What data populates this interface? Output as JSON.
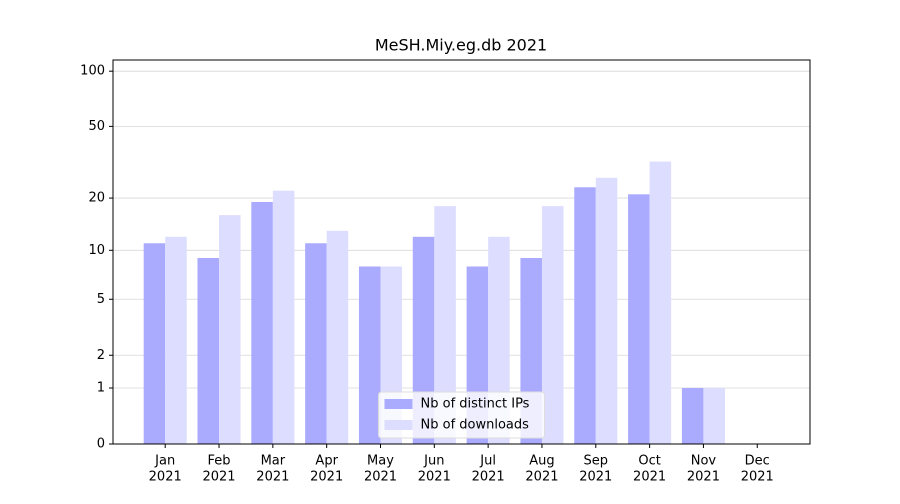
{
  "chart_data": {
    "type": "bar",
    "title": "MeSH.Miy.eg.db 2021",
    "categories": [
      [
        "Jan",
        "2021"
      ],
      [
        "Feb",
        "2021"
      ],
      [
        "Mar",
        "2021"
      ],
      [
        "Apr",
        "2021"
      ],
      [
        "May",
        "2021"
      ],
      [
        "Jun",
        "2021"
      ],
      [
        "Jul",
        "2021"
      ],
      [
        "Aug",
        "2021"
      ],
      [
        "Sep",
        "2021"
      ],
      [
        "Oct",
        "2021"
      ],
      [
        "Nov",
        "2021"
      ],
      [
        "Dec",
        "2021"
      ]
    ],
    "series": [
      {
        "name": "Nb of distinct IPs",
        "color": "#aaaaff",
        "values": [
          11,
          9,
          19,
          11,
          8,
          12,
          8,
          9,
          23,
          21,
          1,
          0
        ]
      },
      {
        "name": "Nb of downloads",
        "color": "#ddddff",
        "values": [
          12,
          16,
          22,
          13,
          8,
          18,
          12,
          18,
          26,
          32,
          1,
          0
        ]
      }
    ],
    "yscale": "log1p",
    "ylim": [
      0,
      115
    ],
    "yticks": [
      0,
      1,
      2,
      5,
      10,
      20,
      50,
      100
    ],
    "grid": true,
    "legend": "lower center"
  }
}
